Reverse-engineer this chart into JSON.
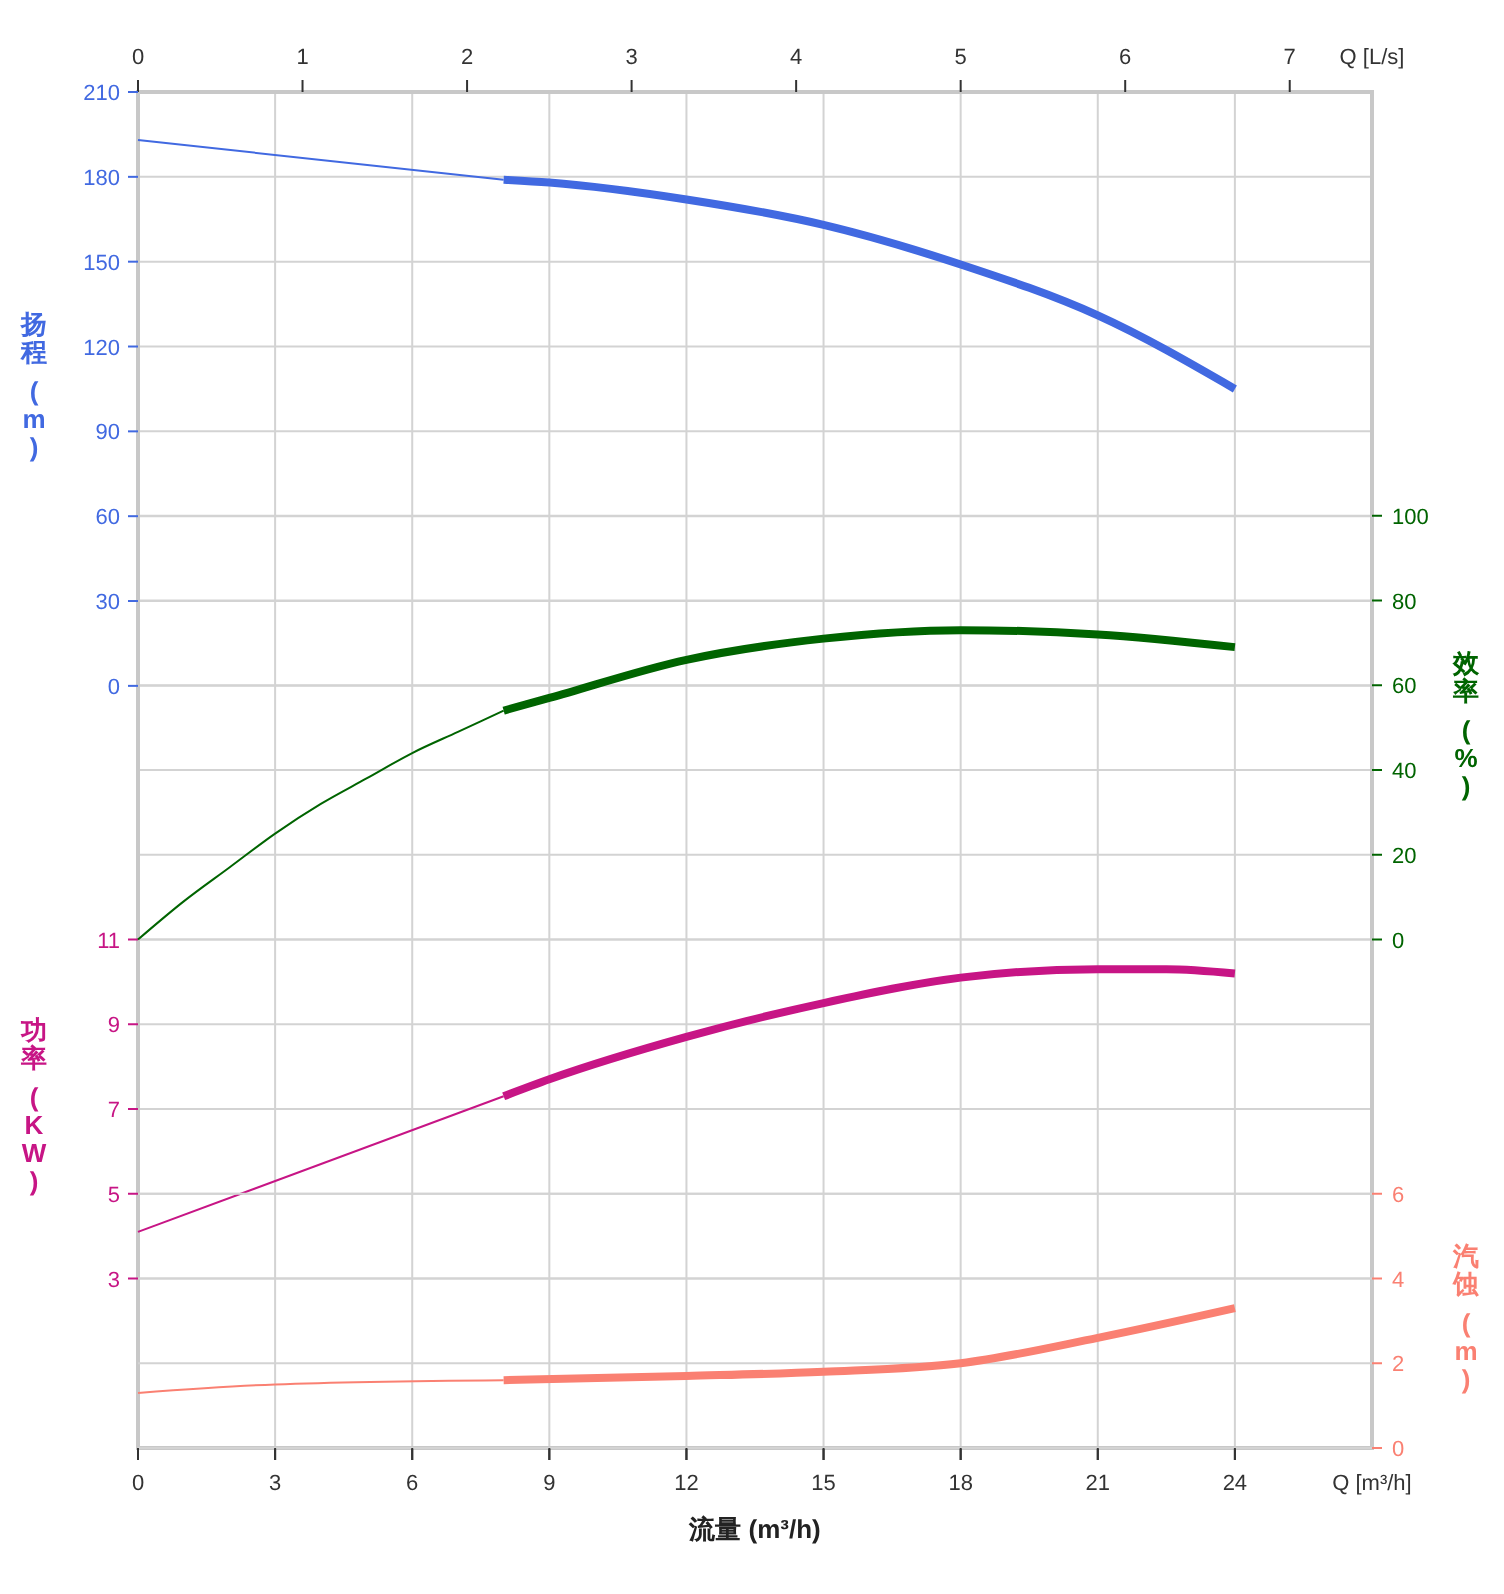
{
  "chart_data": [
    {
      "type": "line",
      "xlabel": "流量 (m³/h)",
      "x2label": "Q [L/s]",
      "ylabel": "扬程 (m)",
      "y2label": "效率 (%)",
      "y3label": "功率 (KW)",
      "annotations": [
        "Q [m³/h]"
      ],
      "xlim": [
        0,
        27
      ],
      "xticks": [
        0,
        3,
        6,
        9,
        12,
        15,
        18,
        21,
        24
      ],
      "x2lim": [
        0,
        7.5
      ],
      "x2ticks": [
        0,
        1,
        2,
        3,
        4,
        5,
        6,
        7
      ],
      "ylim": [
        -269.5,
        210
      ],
      "yticks": [
        0,
        30,
        60,
        90,
        120,
        150,
        180,
        210
      ],
      "y2lim": [
        -120,
        200
      ],
      "y2ticks": [
        0,
        20,
        40,
        60,
        80,
        100
      ],
      "y3lim": [
        -1,
        31
      ],
      "y3ticks": [
        3,
        5,
        7,
        9,
        11
      ],
      "grid": true,
      "series": [
        {
          "color": "#4169e1",
          "x": [
            0,
            8
          ],
          "values": [
            193,
            179
          ]
        },
        {
          "color": "#4169e1",
          "x": [
            8,
            9,
            12,
            15,
            18,
            21,
            24
          ],
          "values": [
            179,
            178,
            172,
            163,
            149,
            131,
            105
          ]
        },
        {
          "color": "#006400",
          "axis": "y2",
          "x": [
            0,
            1,
            2,
            3,
            4,
            5,
            6,
            7,
            8
          ],
          "values": [
            0,
            9,
            17,
            25,
            32,
            38,
            44,
            49,
            54
          ]
        },
        {
          "color": "#006400",
          "axis": "y2",
          "x": [
            8,
            9,
            12,
            15,
            18,
            21,
            24
          ],
          "values": [
            54,
            57,
            66,
            71,
            73,
            72,
            69
          ]
        },
        {
          "color": "#c71585",
          "axis": "y3",
          "x": [
            0,
            8
          ],
          "values": [
            4.1,
            7.3
          ]
        },
        {
          "color": "#c71585",
          "axis": "y3",
          "x": [
            8,
            9,
            12,
            15,
            18,
            21,
            22.5,
            24
          ],
          "values": [
            7.3,
            7.7,
            8.7,
            9.5,
            10.1,
            10.3,
            10.3,
            10.2
          ]
        }
      ]
    },
    {
      "type": "line",
      "ylabel": "汽蚀 (m)",
      "xlim": [
        0,
        27
      ],
      "xticks": [
        0,
        3,
        6,
        9,
        12,
        15,
        18,
        21,
        24
      ],
      "ylim": [
        0,
        32
      ],
      "yticks": [
        0,
        2,
        4,
        6
      ],
      "grid": "y",
      "tick_labels": "y",
      "series": [
        {
          "color": "#fa8072",
          "x": [
            0,
            3,
            8
          ],
          "values": [
            1.3,
            1.5,
            1.6
          ]
        },
        {
          "color": "#fa8072",
          "x": [
            8,
            12,
            15,
            18,
            21,
            24
          ],
          "values": [
            1.6,
            1.7,
            1.8,
            2.0,
            2.6,
            3.3
          ]
        }
      ]
    }
  ]
}
